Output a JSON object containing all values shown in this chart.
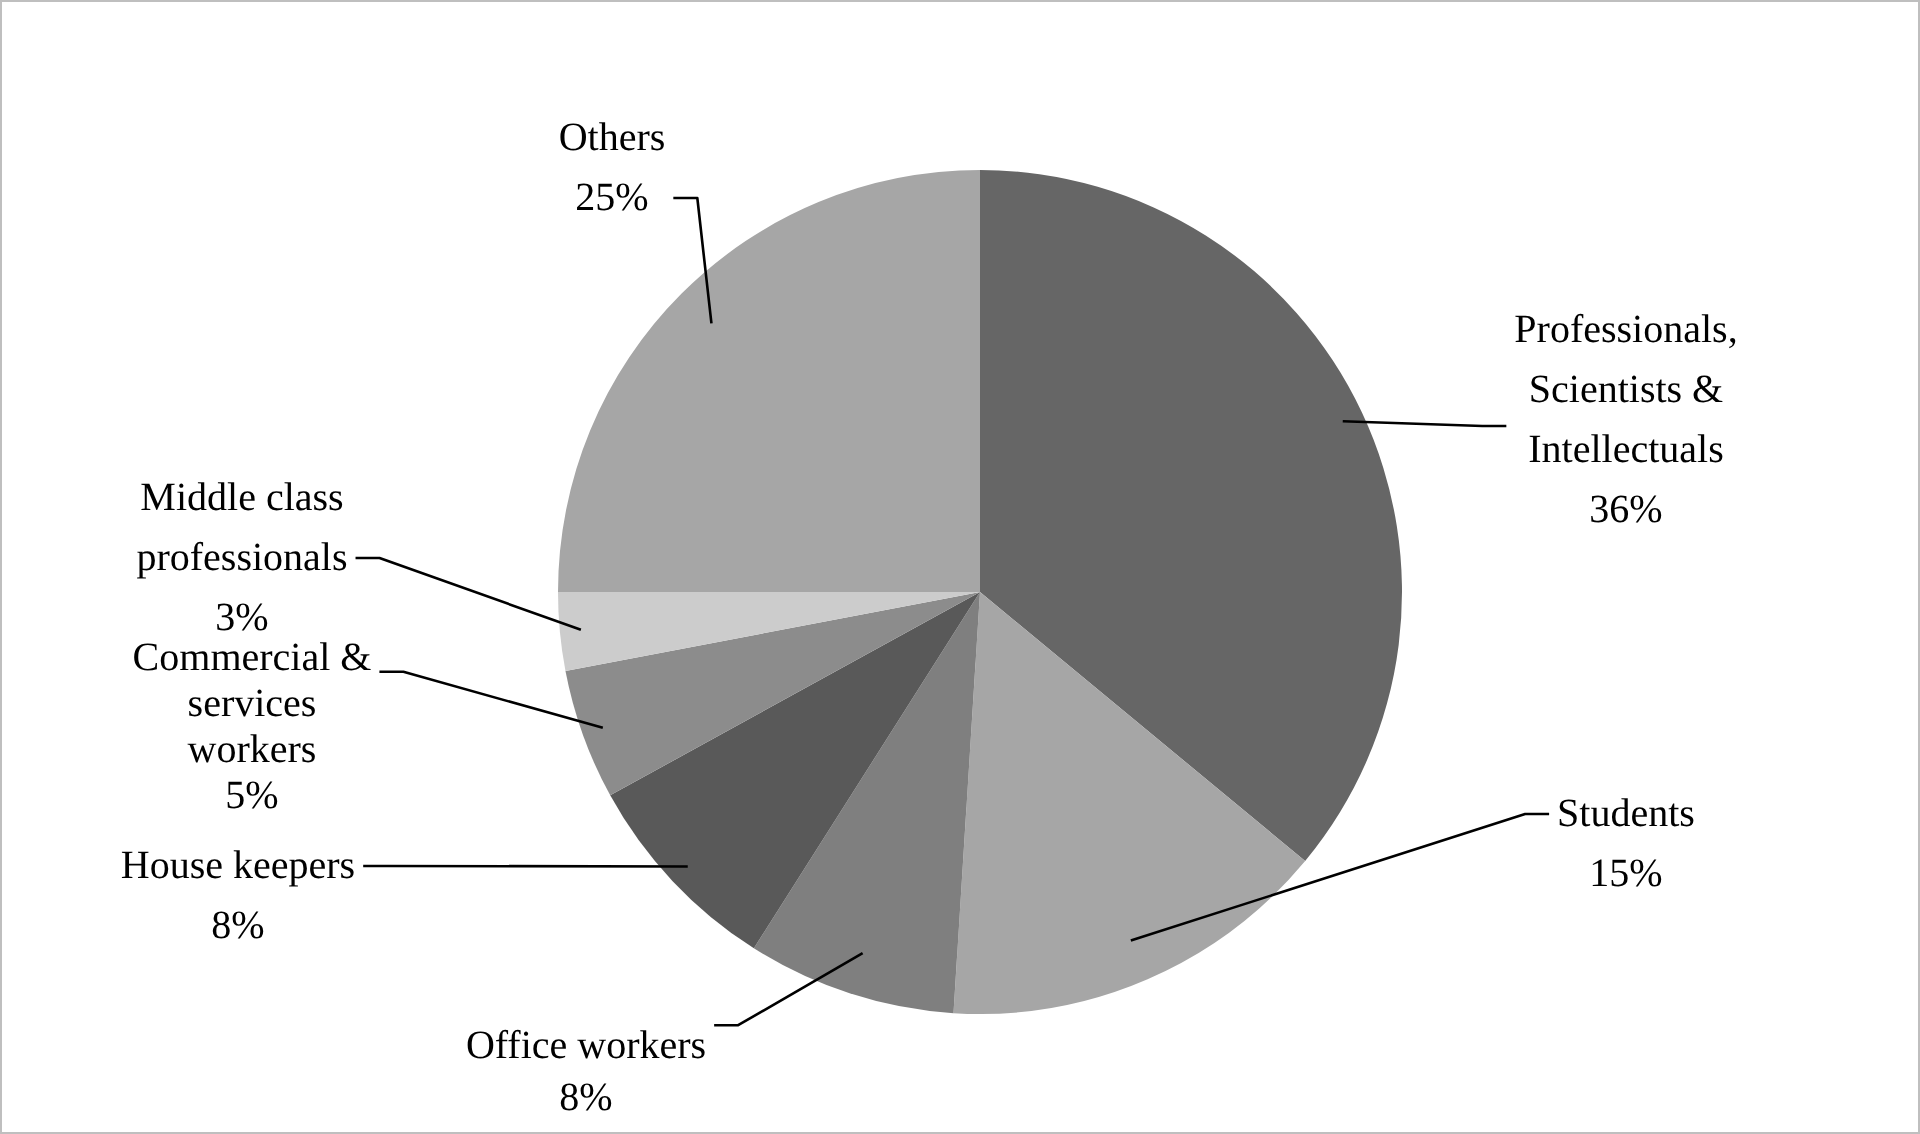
{
  "chart_data": {
    "type": "pie",
    "categories": [
      "Professionals, Scientists & Intellectuals",
      "Students",
      "Office workers",
      "House keepers",
      "Commercial & services workers",
      "Middle class professionals",
      "Others"
    ],
    "values": [
      36,
      15,
      8,
      8,
      5,
      3,
      25
    ],
    "value_labels": [
      "36%",
      "15%",
      "8%",
      "8%",
      "5%",
      "3%",
      "25%"
    ],
    "colors": [
      "#666666",
      "#a6a6a6",
      "#7f7f7f",
      "#595959",
      "#8c8c8c",
      "#cccccc",
      "#a6a6a6"
    ],
    "legend": false
  }
}
